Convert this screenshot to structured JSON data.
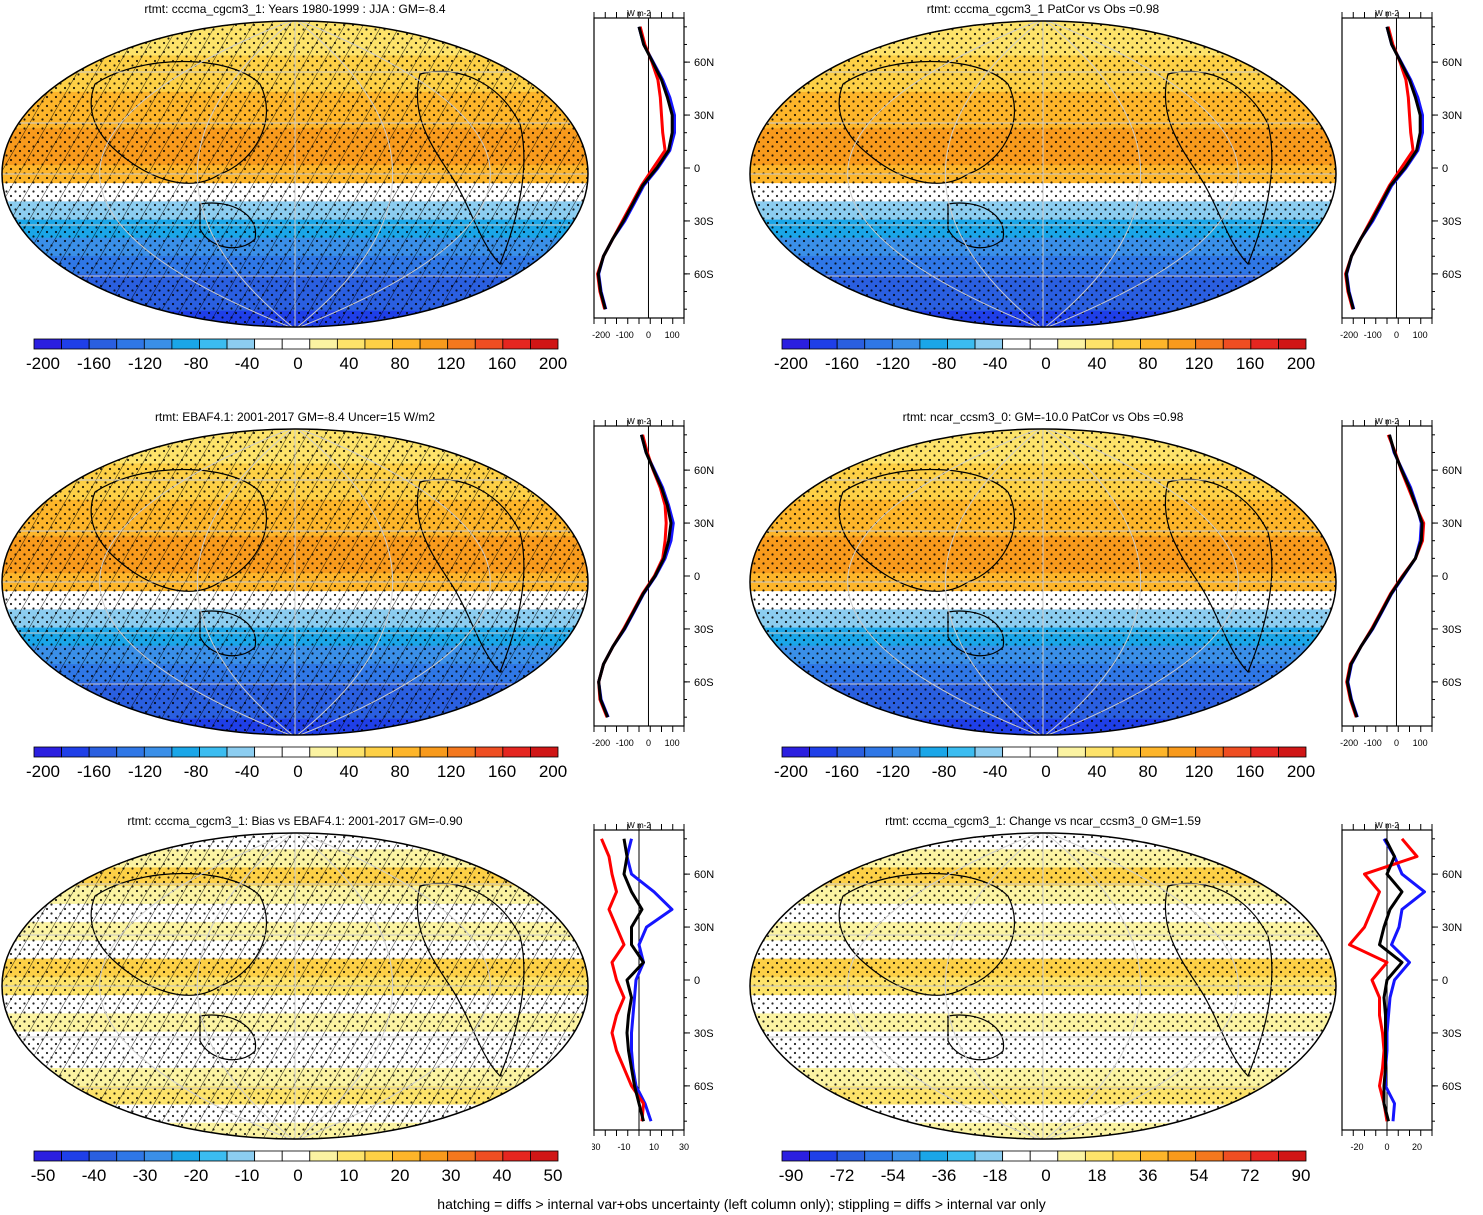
{
  "footer": "hatching = diffs > internal var+obs uncertainty (left column only); stippling = diffs > internal var only",
  "colors": {
    "scale": [
      "#2b1fe0",
      "#1f3fe8",
      "#2a5fe0",
      "#2f77e6",
      "#3a8fe8",
      "#1aa6e8",
      "#3bbcf0",
      "#8ccdf0",
      "#ffffff",
      "#ffffff",
      "#fbf3a2",
      "#fde36a",
      "#fdd046",
      "#fdb52a",
      "#f89a1c",
      "#f4781e",
      "#ef4e22",
      "#e52620",
      "#d01616"
    ],
    "model_line": "#1515ff",
    "obs_line": "#ff0000",
    "mean_line": "#000000"
  },
  "zonal_y_ticks": [
    "60N",
    "30N",
    "0",
    "30S",
    "60S"
  ],
  "zonal_unit": "W m-2",
  "panels": [
    {
      "id": "p1",
      "title": "rtmt: cccma_cgcm3_1: Years 1980-1999 : JJA : GM=-8.4",
      "hatched": true,
      "cbar_labels": [
        "-200",
        "-160",
        "-120",
        "-80",
        "-40",
        "0",
        "40",
        "80",
        "120",
        "160",
        "200"
      ],
      "zonal_x_ticks": [
        "-200",
        "-100",
        "0",
        "100"
      ],
      "zonal_xlim": [
        -230,
        150
      ],
      "chart_data": {
        "type": "line",
        "lat": [
          80,
          70,
          60,
          50,
          40,
          30,
          20,
          10,
          0,
          -10,
          -20,
          -30,
          -40,
          -50,
          -60,
          -70,
          -80
        ],
        "series": [
          {
            "color": "blue",
            "values": [
              -40,
              -20,
              20,
              60,
              90,
              110,
              110,
              90,
              40,
              -20,
              -60,
              -100,
              -150,
              -190,
              -210,
              -200,
              -180
            ]
          },
          {
            "color": "red",
            "values": [
              -35,
              -15,
              15,
              40,
              50,
              55,
              60,
              70,
              20,
              -30,
              -70,
              -110,
              -150,
              -190,
              -215,
              -205,
              -185
            ]
          },
          {
            "color": "black",
            "values": [
              -40,
              -20,
              18,
              55,
              80,
              100,
              100,
              85,
              35,
              -25,
              -65,
              -105,
              -150,
              -190,
              -212,
              -202,
              -182
            ]
          }
        ]
      }
    },
    {
      "id": "p2",
      "title": "rtmt: cccma_cgcm3_1 PatCor vs Obs =0.98",
      "hatched": false,
      "cbar_labels": [
        "-200",
        "-160",
        "-120",
        "-80",
        "-40",
        "0",
        "40",
        "80",
        "120",
        "160",
        "200"
      ],
      "zonal_x_ticks": [
        "-200",
        "-100",
        "0",
        "100"
      ],
      "zonal_xlim": [
        -230,
        150
      ],
      "chart_data": {
        "type": "line",
        "lat": [
          80,
          70,
          60,
          50,
          40,
          30,
          20,
          10,
          0,
          -10,
          -20,
          -30,
          -40,
          -50,
          -60,
          -70,
          -80
        ],
        "series": [
          {
            "color": "blue",
            "values": [
              -40,
              -20,
              20,
              60,
              90,
              110,
              110,
              90,
              40,
              -20,
              -60,
              -100,
              -150,
              -190,
              -210,
              -200,
              -180
            ]
          },
          {
            "color": "red",
            "values": [
              -35,
              -15,
              15,
              40,
              50,
              55,
              60,
              70,
              20,
              -30,
              -70,
              -110,
              -150,
              -190,
              -215,
              -205,
              -185
            ]
          },
          {
            "color": "black",
            "values": [
              -40,
              -20,
              18,
              55,
              80,
              100,
              100,
              85,
              35,
              -25,
              -65,
              -105,
              -150,
              -190,
              -212,
              -202,
              -182
            ]
          }
        ]
      }
    },
    {
      "id": "p3",
      "title": "rtmt: EBAF4.1: 2001-2017 GM=-8.4 Uncer=15 W/m2",
      "hatched": true,
      "cbar_labels": [
        "-200",
        "-160",
        "-120",
        "-80",
        "-40",
        "0",
        "40",
        "80",
        "120",
        "160",
        "200"
      ],
      "zonal_x_ticks": [
        "-200",
        "-100",
        "0",
        "100"
      ],
      "zonal_xlim": [
        -230,
        150
      ],
      "chart_data": {
        "type": "line",
        "lat": [
          80,
          70,
          60,
          50,
          40,
          30,
          20,
          10,
          0,
          -10,
          -20,
          -30,
          -40,
          -50,
          -60,
          -70,
          -80
        ],
        "series": [
          {
            "color": "blue",
            "values": [
              -30,
              -10,
              25,
              60,
              85,
              105,
              95,
              70,
              30,
              -20,
              -60,
              -100,
              -150,
              -190,
              -210,
              -200,
              -170
            ]
          },
          {
            "color": "red",
            "values": [
              -25,
              -5,
              20,
              50,
              70,
              75,
              70,
              60,
              25,
              -25,
              -65,
              -105,
              -150,
              -190,
              -210,
              -205,
              -175
            ]
          },
          {
            "color": "black",
            "values": [
              -30,
              -10,
              22,
              55,
              80,
              95,
              85,
              65,
              28,
              -22,
              -62,
              -102,
              -150,
              -190,
              -210,
              -202,
              -172
            ]
          }
        ]
      }
    },
    {
      "id": "p4",
      "title": "rtmt: ncar_ccsm3_0: GM=-10.0 PatCor vs Obs =0.98",
      "hatched": false,
      "cbar_labels": [
        "-200",
        "-160",
        "-120",
        "-80",
        "-40",
        "0",
        "40",
        "80",
        "120",
        "160",
        "200"
      ],
      "zonal_x_ticks": [
        "-200",
        "-100",
        "0",
        "100"
      ],
      "zonal_xlim": [
        -230,
        150
      ],
      "chart_data": {
        "type": "line",
        "lat": [
          80,
          70,
          60,
          50,
          40,
          30,
          20,
          10,
          0,
          -10,
          -20,
          -30,
          -40,
          -50,
          -60,
          -70,
          -80
        ],
        "series": [
          {
            "color": "blue",
            "values": [
              -30,
              -10,
              25,
              60,
              85,
              105,
              100,
              80,
              30,
              -20,
              -60,
              -100,
              -150,
              -190,
              -205,
              -190,
              -165
            ]
          },
          {
            "color": "red",
            "values": [
              -35,
              -5,
              20,
              50,
              80,
              115,
              110,
              80,
              25,
              -25,
              -65,
              -105,
              -150,
              -195,
              -210,
              -195,
              -170
            ]
          },
          {
            "color": "black",
            "values": [
              -30,
              -8,
              22,
              55,
              82,
              108,
              105,
              80,
              28,
              -22,
              -62,
              -102,
              -150,
              -192,
              -207,
              -192,
              -167
            ]
          }
        ]
      }
    },
    {
      "id": "p5",
      "title": "rtmt: cccma_cgcm3_1: Bias vs EBAF4.1: 2001-2017 GM=-0.90",
      "hatched": true,
      "cbar_labels": [
        "-50",
        "-40",
        "-30",
        "-20",
        "-10",
        "0",
        "10",
        "20",
        "30",
        "40",
        "50"
      ],
      "zonal_x_ticks": [
        "-30",
        "-10",
        "10",
        "30"
      ],
      "zonal_xlim": [
        -30,
        30
      ],
      "chart_data": {
        "type": "line",
        "lat": [
          80,
          70,
          60,
          50,
          40,
          30,
          20,
          10,
          0,
          -10,
          -20,
          -30,
          -40,
          -50,
          -60,
          -70,
          -80
        ],
        "series": [
          {
            "color": "blue",
            "values": [
              -5,
              -8,
              -5,
              10,
              22,
              5,
              0,
              3,
              -2,
              -3,
              -4,
              -5,
              -5,
              -4,
              -2,
              4,
              8
            ]
          },
          {
            "color": "red",
            "values": [
              -25,
              -20,
              -18,
              -15,
              -20,
              -15,
              -10,
              -18,
              -15,
              -10,
              -15,
              -18,
              -15,
              -10,
              -5,
              3,
              2
            ]
          },
          {
            "color": "black",
            "values": [
              -10,
              -8,
              -10,
              -5,
              2,
              -5,
              -5,
              3,
              -8,
              -5,
              -7,
              -8,
              -7,
              -5,
              -3,
              0,
              3
            ]
          }
        ]
      }
    },
    {
      "id": "p6",
      "title": "rtmt: cccma_cgcm3_1: Change vs ncar_ccsm3_0 GM=1.59",
      "hatched": false,
      "cbar_labels": [
        "-90",
        "-72",
        "-54",
        "-36",
        "-18",
        "0",
        "18",
        "36",
        "54",
        "72",
        "90"
      ],
      "zonal_x_ticks": [
        "-20",
        "0",
        "20"
      ],
      "zonal_xlim": [
        -30,
        30
      ],
      "chart_data": {
        "type": "line",
        "lat": [
          80,
          70,
          60,
          50,
          40,
          30,
          20,
          10,
          0,
          -10,
          -20,
          -30,
          -40,
          -50,
          -60,
          -70,
          -80
        ],
        "series": [
          {
            "color": "blue",
            "values": [
              -2,
              5,
              10,
              25,
              10,
              8,
              3,
              15,
              5,
              2,
              1,
              0,
              0,
              -1,
              -1,
              5,
              4
            ]
          },
          {
            "color": "red",
            "values": [
              10,
              20,
              -15,
              -5,
              -10,
              -15,
              -25,
              0,
              -10,
              -5,
              -5,
              -3,
              -2,
              -3,
              -5,
              -2,
              0
            ]
          },
          {
            "color": "black",
            "values": [
              -1,
              5,
              0,
              10,
              2,
              -2,
              -5,
              10,
              0,
              -2,
              -1,
              -1,
              -1,
              -1,
              -2,
              -2,
              1
            ]
          }
        ]
      }
    }
  ]
}
